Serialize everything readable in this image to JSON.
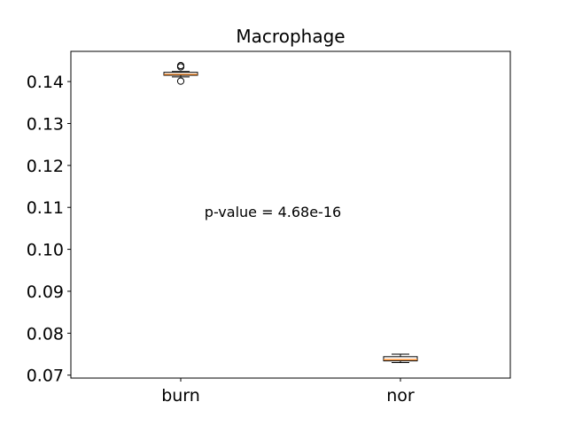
{
  "chart_data": {
    "type": "box",
    "title": "Macrophage",
    "xlabel": "",
    "ylabel": "",
    "categories": [
      "burn",
      "nor"
    ],
    "ylim": [
      0.0693,
      0.1472
    ],
    "yticks": [
      0.07,
      0.08,
      0.09,
      0.1,
      0.11,
      0.12,
      0.13,
      0.14
    ],
    "ytick_labels": [
      "0.07",
      "0.08",
      "0.09",
      "0.10",
      "0.11",
      "0.12",
      "0.13",
      "0.14"
    ],
    "boxes": [
      {
        "category": "burn",
        "whisker_low": 0.1411,
        "q1": 0.1415,
        "median": 0.1417,
        "q3": 0.1422,
        "whisker_high": 0.1424,
        "outliers": [
          0.1401,
          0.1435,
          0.1438
        ]
      },
      {
        "category": "nor",
        "whisker_low": 0.073,
        "q1": 0.0734,
        "median": 0.0737,
        "q3": 0.0744,
        "whisker_high": 0.075,
        "outliers": []
      }
    ],
    "annotations": [
      {
        "text": "p-value = 4.68e-16",
        "x": 1.5,
        "y": 0.109
      }
    ],
    "grid": false,
    "colors": {
      "box": "#000000",
      "median": "#ff7f0e",
      "background": "#ffffff"
    }
  }
}
